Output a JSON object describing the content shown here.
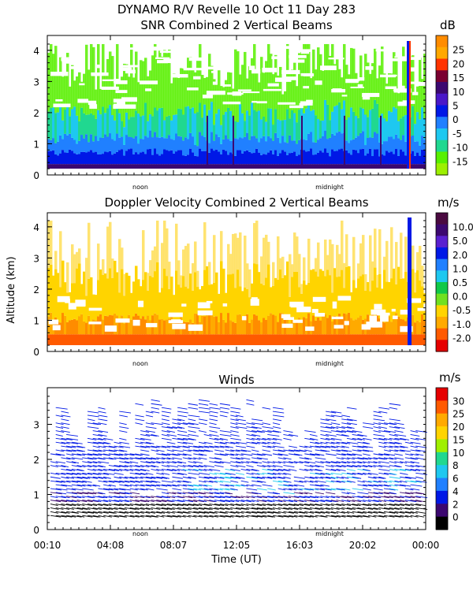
{
  "header": {
    "title": "DYNAMO R/V Revelle  10 Oct 11 Day 283"
  },
  "chart_data": [
    {
      "type": "heatmap",
      "title": "SNR Combined 2 Vertical Beams",
      "ylabel": "",
      "ylim": [
        0,
        4.3
      ],
      "yticks": [
        "0",
        "1",
        "2",
        "3",
        "4"
      ],
      "markers": [
        "noon",
        "midnight"
      ],
      "colorbar": {
        "unit": "dB",
        "labels": [
          "25",
          "20",
          "15",
          "10",
          "5",
          "0",
          "-5",
          "-10",
          "-15"
        ],
        "colors": [
          "#ff8c00",
          "#ffa800",
          "#ff3300",
          "#7a0030",
          "#3c0870",
          "#4a18c8",
          "#0018e6",
          "#2080ff",
          "#1ec8f0",
          "#20d890",
          "#58f000",
          "#9df000"
        ]
      }
    },
    {
      "type": "heatmap",
      "title": "Doppler Velocity Combined 2 Vertical Beams",
      "ylabel": "Altitude (km)",
      "ylim": [
        0,
        4.3
      ],
      "yticks": [
        "0",
        "1",
        "2",
        "3",
        "4"
      ],
      "markers": [
        "noon",
        "midnight"
      ],
      "colorbar": {
        "unit": "m/s",
        "labels": [
          "10.0",
          "5.0",
          "2.0",
          "1.0",
          "0.5",
          "0.0",
          "-0.5",
          "-1.0",
          "-2.0"
        ],
        "colors": [
          "#4a0a40",
          "#3c0870",
          "#5a20d0",
          "#0018e6",
          "#2080ff",
          "#1ec8f0",
          "#10c848",
          "#70e020",
          "#ffd400",
          "#ffaa00",
          "#ff5a00",
          "#e60000"
        ]
      }
    },
    {
      "type": "scatter",
      "title": "Winds",
      "xlabel": "Time (UT)",
      "ylim": [
        0,
        4.0
      ],
      "yticks": [
        "0",
        "1",
        "2",
        "3"
      ],
      "markers": [
        "noon",
        "midnight"
      ],
      "xticks": [
        "00:10",
        "04:08",
        "08:07",
        "12:05",
        "16:03",
        "20:02",
        "00:00"
      ],
      "colorbar": {
        "unit": "m/s",
        "labels": [
          "30",
          "25",
          "20",
          "15",
          "10",
          "8",
          "6",
          "4",
          "2",
          "0"
        ],
        "colors": [
          "#e60000",
          "#ff5a00",
          "#ffaa00",
          "#ffd400",
          "#a0f000",
          "#20d890",
          "#1ec8f0",
          "#2080ff",
          "#0018e6",
          "#3c0870",
          "#000000"
        ]
      }
    }
  ]
}
